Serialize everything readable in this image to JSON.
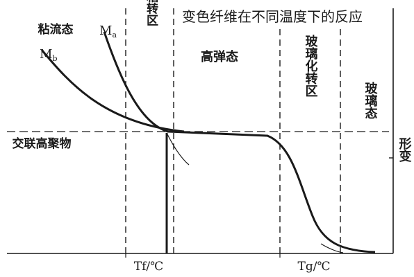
{
  "title": "变色纤维在不同温度下的反应",
  "labels": {
    "viscous_state": "粘流态",
    "transition_zone": "粘转区",
    "rubbery_state": "高弹态",
    "glass_transition_zone": "玻璃化转区",
    "glassy_state": "玻璃态",
    "crosslinked_polymer": "交联高聚物",
    "deformation": "形变",
    "mb": "Mb",
    "ma": "Ma",
    "mb_sub": "b",
    "ma_sub": "a",
    "tf": "Tf/℃",
    "tg": "Tg/℃"
  },
  "colors": {
    "ink": "#1a1a1a",
    "background": "#ffffff"
  }
}
